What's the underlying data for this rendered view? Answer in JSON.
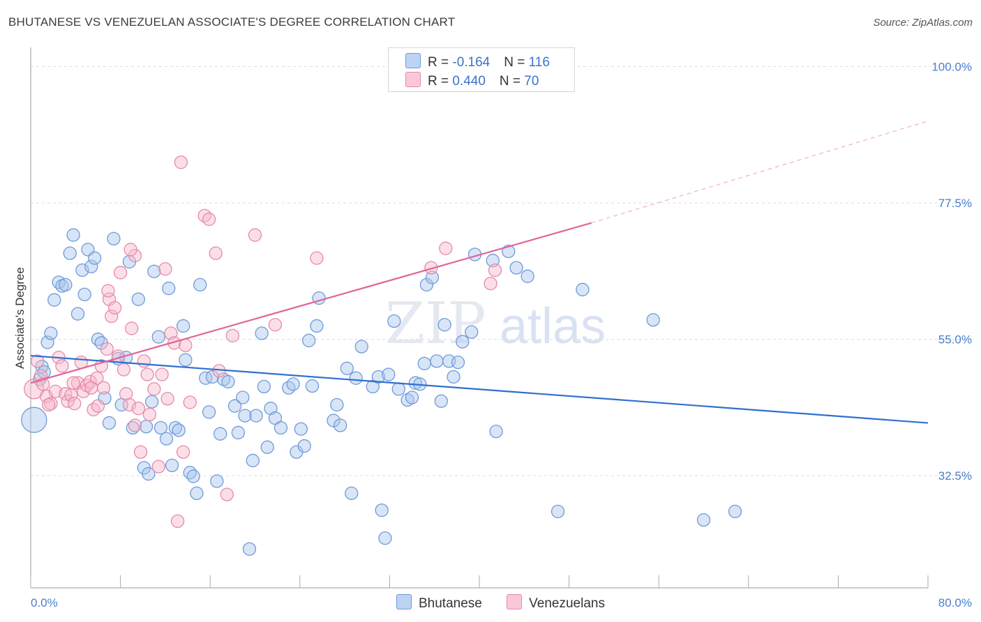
{
  "title": "BHUTANESE VS VENEZUELAN ASSOCIATE'S DEGREE CORRELATION CHART",
  "source": "Source: ZipAtlas.com",
  "watermark": {
    "zip": "ZIP",
    "atlas": "atlas"
  },
  "legend": {
    "rows": [
      {
        "r_label": "R = ",
        "r_value": "-0.164",
        "n_label": "N = ",
        "n_value": "116"
      },
      {
        "r_label": "R = ",
        "r_value": "0.440",
        "n_label": "N = ",
        "n_value": "70"
      }
    ]
  },
  "bottom_legend": [
    "Bhutanese",
    "Venezuelans"
  ],
  "colors": {
    "blue_fill": "#a9c6ee",
    "blue_stroke": "#6f9ad8",
    "blue_line": "#2f6fd0",
    "pink_fill": "#f6b8cb",
    "pink_stroke": "#e68aa8",
    "pink_line": "#e0649a",
    "grid": "#dddddd",
    "axis_text": "#4a7fcc"
  },
  "chart_data": {
    "type": "scatter",
    "ylabel": "Associate's Degree",
    "xlim": [
      0,
      80
    ],
    "ylim": [
      14,
      102
    ],
    "x_tick_labels": [
      "0.0%",
      "80.0%"
    ],
    "y_ticks": [
      32.5,
      55.0,
      77.5,
      100.0
    ],
    "y_tick_labels": [
      "32.5%",
      "55.0%",
      "77.5%",
      "100.0%"
    ],
    "grid": true,
    "series": [
      {
        "name": "Bhutanese",
        "trend": {
          "x0": 0,
          "y0": 52.3,
          "x1": 80,
          "y1": 41.2
        },
        "points": [
          [
            0.3,
            41.7
          ],
          [
            0.8,
            48.4
          ],
          [
            1.0,
            50.5
          ],
          [
            1.2,
            49.6
          ],
          [
            1.5,
            54.5
          ],
          [
            1.8,
            56.0
          ],
          [
            2.1,
            61.5
          ],
          [
            2.5,
            64.4
          ],
          [
            2.8,
            63.8
          ],
          [
            3.1,
            64.0
          ],
          [
            3.5,
            69.2
          ],
          [
            3.8,
            72.2
          ],
          [
            4.2,
            59.2
          ],
          [
            4.6,
            66.4
          ],
          [
            4.8,
            62.4
          ],
          [
            5.1,
            69.8
          ],
          [
            5.4,
            67.0
          ],
          [
            5.7,
            68.4
          ],
          [
            6.0,
            55.0
          ],
          [
            6.3,
            54.4
          ],
          [
            6.6,
            45.3
          ],
          [
            7.0,
            41.2
          ],
          [
            7.4,
            71.6
          ],
          [
            7.8,
            51.8
          ],
          [
            8.1,
            44.2
          ],
          [
            8.5,
            52.0
          ],
          [
            8.8,
            67.8
          ],
          [
            9.1,
            40.4
          ],
          [
            9.6,
            61.6
          ],
          [
            10.1,
            33.8
          ],
          [
            10.3,
            40.6
          ],
          [
            10.5,
            32.8
          ],
          [
            10.8,
            44.7
          ],
          [
            11.0,
            66.2
          ],
          [
            11.4,
            55.4
          ],
          [
            11.6,
            40.4
          ],
          [
            12.1,
            38.6
          ],
          [
            12.3,
            63.4
          ],
          [
            12.6,
            34.2
          ],
          [
            12.9,
            40.4
          ],
          [
            13.2,
            40.0
          ],
          [
            13.6,
            57.2
          ],
          [
            13.8,
            51.6
          ],
          [
            14.2,
            33.0
          ],
          [
            14.5,
            32.4
          ],
          [
            14.8,
            29.6
          ],
          [
            15.1,
            64.0
          ],
          [
            15.6,
            48.6
          ],
          [
            15.9,
            43.0
          ],
          [
            16.2,
            48.8
          ],
          [
            16.6,
            31.6
          ],
          [
            16.9,
            39.4
          ],
          [
            17.2,
            48.4
          ],
          [
            17.6,
            48.0
          ],
          [
            18.2,
            44.0
          ],
          [
            18.5,
            39.6
          ],
          [
            18.9,
            45.4
          ],
          [
            19.1,
            42.4
          ],
          [
            19.5,
            20.4
          ],
          [
            19.8,
            35.0
          ],
          [
            20.1,
            42.4
          ],
          [
            20.6,
            56.0
          ],
          [
            20.8,
            47.2
          ],
          [
            21.1,
            37.2
          ],
          [
            21.4,
            43.6
          ],
          [
            21.8,
            42.0
          ],
          [
            22.3,
            40.4
          ],
          [
            23.0,
            47.0
          ],
          [
            23.4,
            47.6
          ],
          [
            23.7,
            36.4
          ],
          [
            24.1,
            40.2
          ],
          [
            24.4,
            37.4
          ],
          [
            24.8,
            54.8
          ],
          [
            25.1,
            47.3
          ],
          [
            25.5,
            57.2
          ],
          [
            25.7,
            61.8
          ],
          [
            27.0,
            41.6
          ],
          [
            27.3,
            44.2
          ],
          [
            27.6,
            40.8
          ],
          [
            28.2,
            50.2
          ],
          [
            28.6,
            29.6
          ],
          [
            29.0,
            48.6
          ],
          [
            29.5,
            53.8
          ],
          [
            30.5,
            47.2
          ],
          [
            31.0,
            48.8
          ],
          [
            31.3,
            26.8
          ],
          [
            31.6,
            22.2
          ],
          [
            31.9,
            49.2
          ],
          [
            32.4,
            58.0
          ],
          [
            32.8,
            46.8
          ],
          [
            33.6,
            45.0
          ],
          [
            34.0,
            45.4
          ],
          [
            34.3,
            47.8
          ],
          [
            34.7,
            47.6
          ],
          [
            35.1,
            51.0
          ],
          [
            35.3,
            64.0
          ],
          [
            35.8,
            65.2
          ],
          [
            36.2,
            51.4
          ],
          [
            36.6,
            44.8
          ],
          [
            36.9,
            57.4
          ],
          [
            37.3,
            51.4
          ],
          [
            37.7,
            48.8
          ],
          [
            38.1,
            51.2
          ],
          [
            38.5,
            54.6
          ],
          [
            39.3,
            56.2
          ],
          [
            39.6,
            69.0
          ],
          [
            41.2,
            68.0
          ],
          [
            41.5,
            39.8
          ],
          [
            43.3,
            66.8
          ],
          [
            44.3,
            65.4
          ],
          [
            47.0,
            26.6
          ],
          [
            49.2,
            63.2
          ],
          [
            55.5,
            58.2
          ],
          [
            60.0,
            25.2
          ],
          [
            62.8,
            26.6
          ],
          [
            42.6,
            69.5
          ]
        ]
      },
      {
        "name": "Venezuelans",
        "trend": {
          "x0": 0,
          "y0": 47.8,
          "x1": 50,
          "y1": 74.2
        },
        "trend_dashed": {
          "x0": 50,
          "y0": 74.2,
          "x1": 80,
          "y1": 91.0
        },
        "points": [
          [
            0.3,
            46.8
          ],
          [
            0.6,
            51.4
          ],
          [
            0.9,
            49.0
          ],
          [
            1.1,
            47.6
          ],
          [
            1.4,
            45.6
          ],
          [
            1.8,
            44.4
          ],
          [
            2.2,
            46.4
          ],
          [
            2.5,
            52.0
          ],
          [
            2.8,
            50.6
          ],
          [
            3.1,
            46.0
          ],
          [
            3.3,
            44.8
          ],
          [
            3.6,
            45.8
          ],
          [
            3.9,
            44.4
          ],
          [
            4.2,
            47.8
          ],
          [
            4.5,
            51.2
          ],
          [
            4.7,
            46.4
          ],
          [
            5.0,
            47.4
          ],
          [
            5.3,
            48.0
          ],
          [
            5.6,
            43.4
          ],
          [
            5.9,
            48.6
          ],
          [
            6.0,
            44.0
          ],
          [
            6.3,
            50.6
          ],
          [
            6.5,
            47.0
          ],
          [
            6.8,
            53.4
          ],
          [
            7.0,
            61.6
          ],
          [
            7.2,
            58.8
          ],
          [
            7.5,
            60.2
          ],
          [
            7.8,
            52.2
          ],
          [
            8.0,
            66.0
          ],
          [
            8.3,
            50.0
          ],
          [
            8.5,
            46.0
          ],
          [
            8.8,
            44.2
          ],
          [
            9.0,
            56.8
          ],
          [
            9.3,
            68.8
          ],
          [
            9.6,
            43.6
          ],
          [
            9.8,
            36.4
          ],
          [
            10.1,
            51.4
          ],
          [
            10.4,
            49.2
          ],
          [
            10.6,
            42.6
          ],
          [
            11.0,
            46.8
          ],
          [
            11.4,
            34.0
          ],
          [
            11.7,
            49.2
          ],
          [
            12.0,
            66.6
          ],
          [
            12.2,
            45.2
          ],
          [
            12.5,
            56.0
          ],
          [
            12.8,
            54.4
          ],
          [
            13.1,
            25.0
          ],
          [
            13.4,
            84.2
          ],
          [
            13.6,
            36.4
          ],
          [
            13.8,
            54.0
          ],
          [
            14.2,
            44.6
          ],
          [
            15.5,
            75.4
          ],
          [
            15.9,
            74.8
          ],
          [
            16.5,
            69.2
          ],
          [
            16.8,
            49.8
          ],
          [
            17.5,
            29.4
          ],
          [
            18.0,
            55.6
          ],
          [
            20.0,
            72.2
          ],
          [
            21.8,
            57.4
          ],
          [
            25.5,
            68.4
          ],
          [
            35.7,
            66.8
          ],
          [
            37.0,
            70.0
          ],
          [
            41.0,
            64.2
          ],
          [
            41.4,
            66.4
          ],
          [
            6.9,
            63.0
          ],
          [
            8.9,
            69.8
          ],
          [
            3.8,
            47.8
          ],
          [
            1.6,
            44.2
          ],
          [
            5.4,
            47.0
          ],
          [
            9.3,
            40.8
          ]
        ]
      }
    ]
  }
}
